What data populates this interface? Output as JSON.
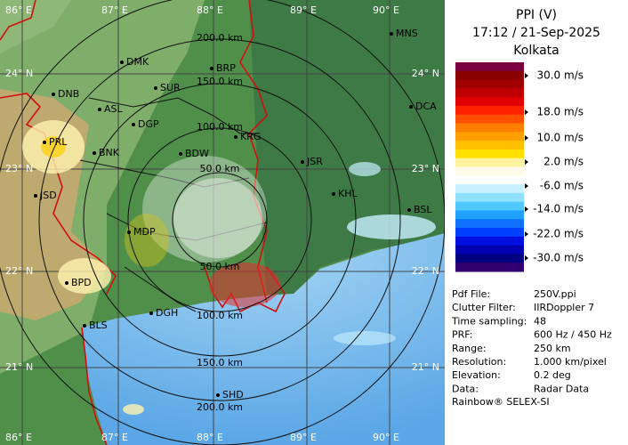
{
  "header": {
    "title": "PPI (V)",
    "time": "17:12 / 21-Sep-2025",
    "station": "Kolkata"
  },
  "legend": {
    "labels": [
      "30.0 m/s",
      "18.0 m/s",
      "10.0 m/s",
      "2.0 m/s",
      "-6.0 m/s",
      "-14.0 m/s",
      "-22.0 m/s",
      "-30.0 m/s"
    ],
    "colors": [
      "#7a0040",
      "#8b0000",
      "#a00000",
      "#c00000",
      "#e00000",
      "#ff2000",
      "#ff5000",
      "#ff8000",
      "#ffa000",
      "#ffc000",
      "#ffe000",
      "#fff3a0",
      "#fffbe8",
      "#ffffff",
      "#c8f0ff",
      "#90e0ff",
      "#50c8ff",
      "#20a0ff",
      "#1070ff",
      "#0040ff",
      "#0010e0",
      "#0000b0",
      "#000080",
      "#300070"
    ]
  },
  "info": [
    [
      "Pdf File:",
      "250V.ppi"
    ],
    [
      "Clutter Filter:",
      "IIRDoppler 7"
    ],
    [
      "Time sampling:",
      "48"
    ],
    [
      "PRF:",
      "600 Hz / 450 Hz"
    ],
    [
      "Range:",
      "250 km"
    ],
    [
      "Resolution:",
      "1.000 km/pixel"
    ],
    [
      "Elevation:",
      "0.2 deg"
    ],
    [
      "Data:",
      "Radar Data"
    ]
  ],
  "footer": "Rainbow® SELEX-SI",
  "map": {
    "lon_labels": [
      "86° E",
      "87° E",
      "88° E",
      "89° E",
      "90° E"
    ],
    "lat_labels": [
      "24° N",
      "23° N",
      "22° N",
      "21° N"
    ],
    "range_labels": [
      "50.0 km",
      "100.0 km",
      "150.0 km",
      "200.0 km"
    ],
    "cities": [
      "MNS",
      "DMK",
      "BRP",
      "DNB",
      "SUR",
      "ASL",
      "DGP",
      "DCA",
      "KRG",
      "PRL",
      "BNK",
      "BDW",
      "JSR",
      "KHL",
      "JSD",
      "BSL",
      "MDP",
      "BPD",
      "DGH",
      "BLS",
      "SHD"
    ]
  }
}
